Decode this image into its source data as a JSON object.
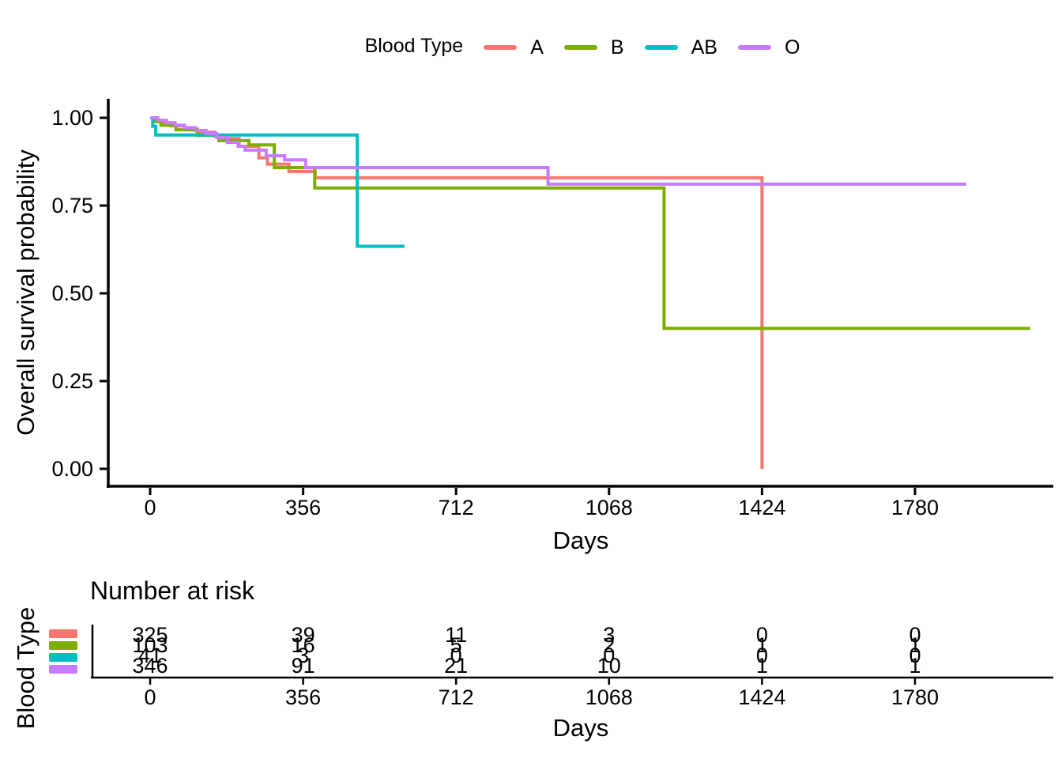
{
  "chart_data": {
    "type": "line",
    "subtype": "kaplan-meier-step",
    "title": "",
    "xlabel": "Days",
    "ylabel": "Overall survival probability",
    "xlim": [
      0,
      2101
    ],
    "ylim": [
      0,
      1
    ],
    "x_ticks": [
      0,
      356,
      712,
      1068,
      1424,
      1780
    ],
    "y_ticks": [
      0.0,
      0.25,
      0.5,
      0.75,
      1.0
    ],
    "y_tick_labels": [
      "0.00",
      "0.25",
      "0.50",
      "0.75",
      "1.00"
    ],
    "grid": false,
    "legend": {
      "title": "Blood Type",
      "position": "top"
    },
    "series": [
      {
        "name": "A",
        "color": "#F8766D",
        "steps": [
          [
            0,
            1.0
          ],
          [
            15,
            0.993
          ],
          [
            30,
            0.986
          ],
          [
            50,
            0.977
          ],
          [
            80,
            0.968
          ],
          [
            110,
            0.959
          ],
          [
            150,
            0.948
          ],
          [
            175,
            0.941
          ],
          [
            207,
            0.919
          ],
          [
            253,
            0.886
          ],
          [
            273,
            0.868
          ],
          [
            323,
            0.847
          ],
          [
            384,
            0.829
          ],
          [
            1424,
            0.829
          ],
          [
            1424,
            0.0
          ]
        ]
      },
      {
        "name": "B",
        "color": "#7CAE00",
        "steps": [
          [
            0,
            1.0
          ],
          [
            12,
            0.989
          ],
          [
            25,
            0.979
          ],
          [
            60,
            0.966
          ],
          [
            110,
            0.95
          ],
          [
            160,
            0.935
          ],
          [
            230,
            0.923
          ],
          [
            289,
            0.858
          ],
          [
            383,
            0.8
          ],
          [
            1196,
            0.8
          ],
          [
            1196,
            0.4
          ],
          [
            2048,
            0.4
          ]
        ]
      },
      {
        "name": "AB",
        "color": "#00BFC4",
        "steps": [
          [
            0,
            1.0
          ],
          [
            6,
            0.976
          ],
          [
            13,
            0.951
          ],
          [
            482,
            0.951
          ],
          [
            482,
            0.634
          ],
          [
            592,
            0.634
          ]
        ]
      },
      {
        "name": "O",
        "color": "#C77CFF",
        "steps": [
          [
            0,
            1.0
          ],
          [
            18,
            0.993
          ],
          [
            38,
            0.986
          ],
          [
            58,
            0.979
          ],
          [
            80,
            0.972
          ],
          [
            105,
            0.964
          ],
          [
            130,
            0.955
          ],
          [
            155,
            0.944
          ],
          [
            180,
            0.93
          ],
          [
            205,
            0.919
          ],
          [
            221,
            0.908
          ],
          [
            270,
            0.892
          ],
          [
            313,
            0.88
          ],
          [
            362,
            0.858
          ],
          [
            926,
            0.811
          ],
          [
            1899,
            0.811
          ]
        ]
      }
    ]
  },
  "risk_table": {
    "title": "Number at risk",
    "y_axis_label": "Blood Type",
    "xlabel": "Days",
    "time_points": [
      0,
      356,
      712,
      1068,
      1424,
      1780
    ],
    "rows": [
      {
        "name": "A",
        "counts": [
          "325",
          "39",
          "11",
          "3",
          "0",
          "0"
        ]
      },
      {
        "name": "B",
        "counts": [
          "103",
          "16",
          "5",
          "2",
          "1",
          "1"
        ]
      },
      {
        "name": "AB",
        "counts": [
          "41",
          "3",
          "0",
          "0",
          "0",
          "0"
        ]
      },
      {
        "name": "O",
        "counts": [
          "346",
          "91",
          "21",
          "10",
          "1",
          "1"
        ]
      }
    ]
  }
}
